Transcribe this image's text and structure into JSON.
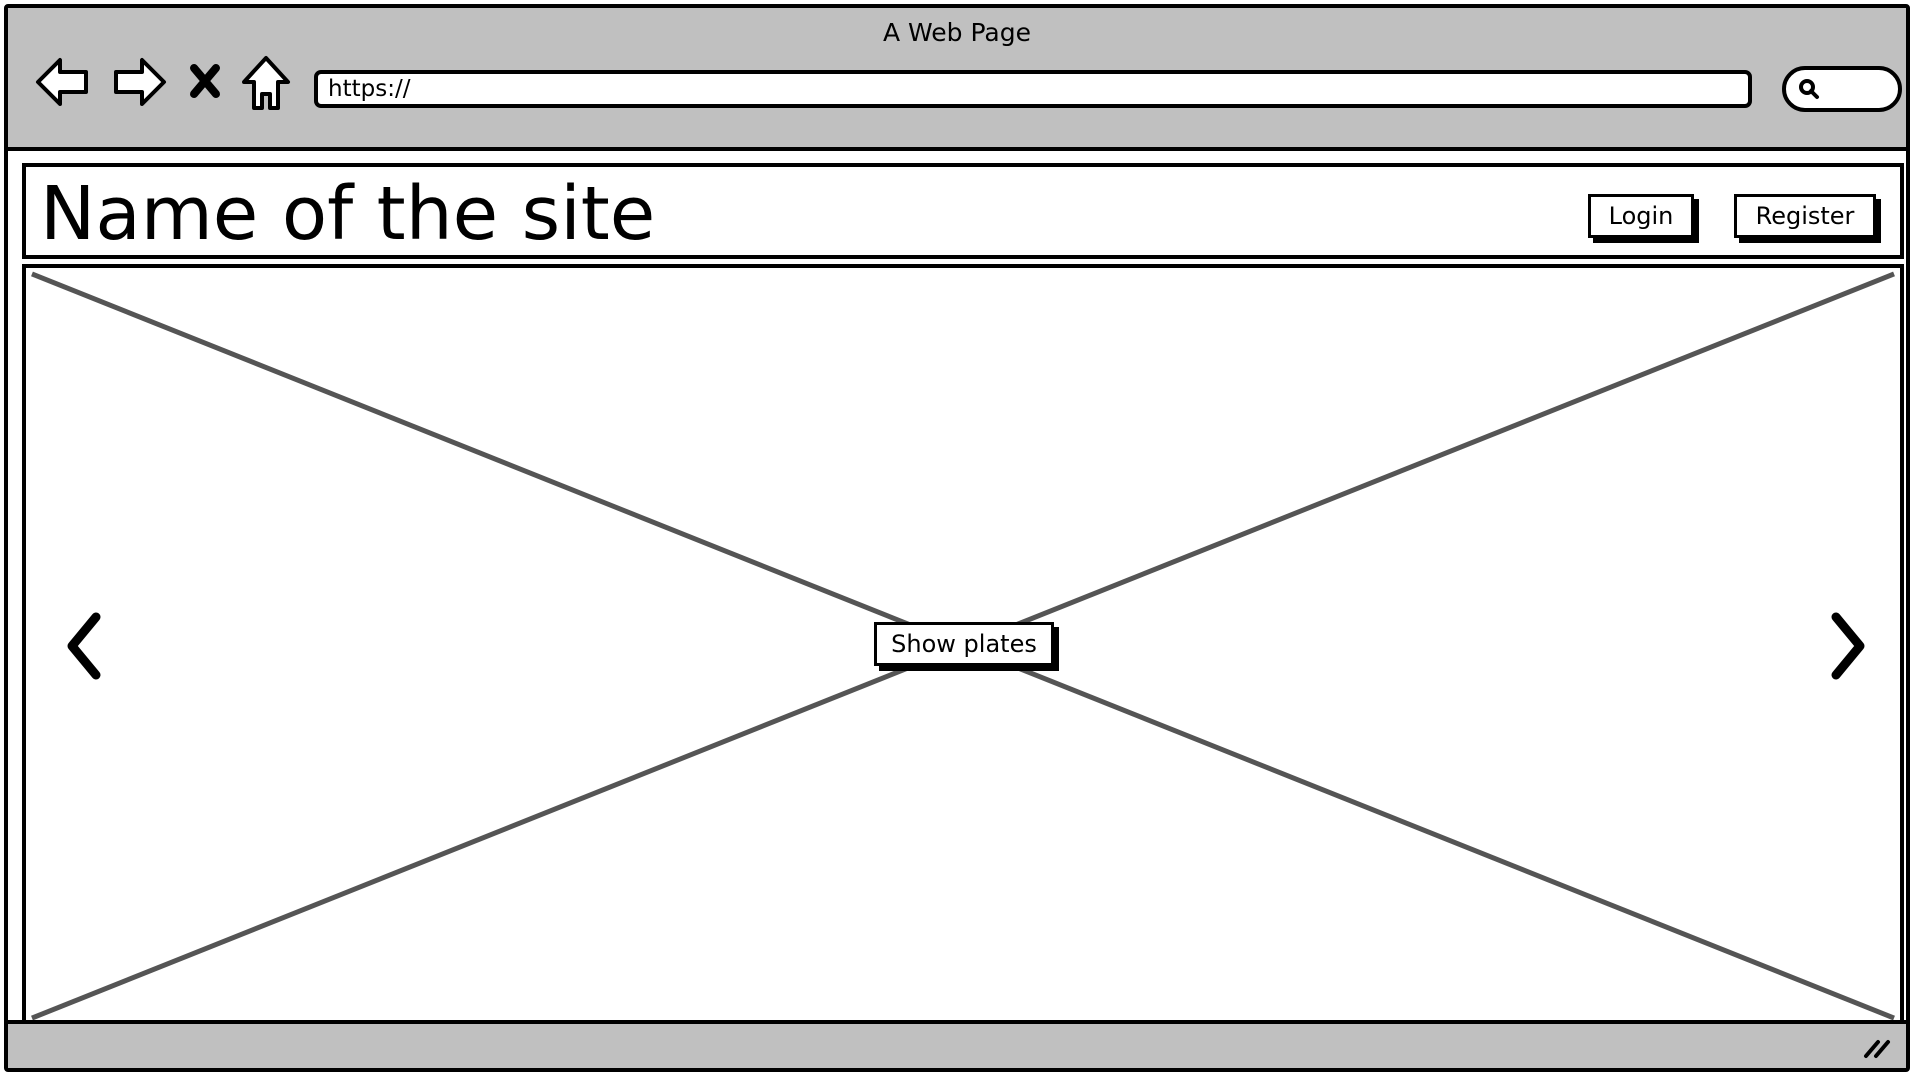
{
  "window": {
    "title": "A Web Page"
  },
  "toolbar": {
    "back_icon": "back-arrow-icon",
    "forward_icon": "forward-arrow-icon",
    "stop_icon": "close-icon",
    "home_icon": "home-icon",
    "url": "https://",
    "search_icon": "search-icon"
  },
  "header": {
    "site_name": "Name of the site",
    "login_label": "Login",
    "register_label": "Register"
  },
  "carousel": {
    "prev_icon": "chevron-left-icon",
    "next_icon": "chevron-right-icon",
    "action_label": "Show plates"
  },
  "colors": {
    "chrome": "#c0c0c0",
    "border": "#000000",
    "placeholder_line": "#555555"
  }
}
